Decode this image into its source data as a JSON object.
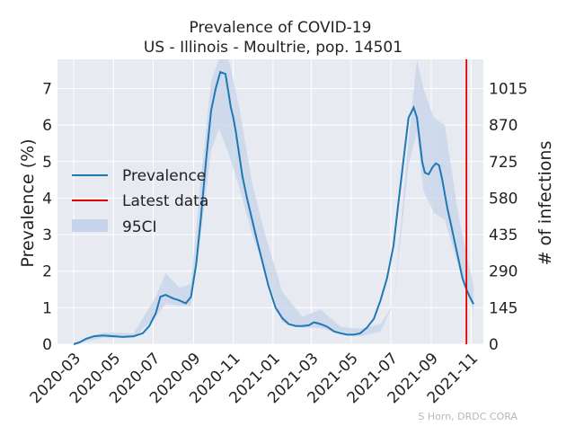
{
  "chart_data": {
    "type": "line",
    "title": "Prevalence of COVID-19",
    "subtitle": "US - Illinois - Moultrie, pop. 14501",
    "ylabel": "Prevalence (%)",
    "y2label": "# of infections",
    "ylim": [
      0,
      7.8
    ],
    "y_ticks": [
      0,
      1,
      2,
      3,
      4,
      5,
      6,
      7
    ],
    "y2_ticks": [
      0,
      145,
      290,
      435,
      580,
      725,
      870,
      1015
    ],
    "y2_per_y": 145.01,
    "x_tick_labels": [
      "2020-03",
      "2020-05",
      "2020-07",
      "2020-09",
      "2020-11",
      "2021-01",
      "2021-03",
      "2021-05",
      "2021-07",
      "2021-09",
      "2021-11"
    ],
    "xlim": [
      "2020-02-05",
      "2021-11-20"
    ],
    "grid": true,
    "legend_position": "center-left",
    "legend": [
      "Prevalence",
      "Latest data",
      "95CI"
    ],
    "latest_data_date": "2021-10-25",
    "colors": {
      "prevalence": "#1f77b4",
      "latest": "#e00000",
      "ci": "#c5d4e8",
      "plot_bg": "#e8eaf2",
      "grid": "#ffffff"
    },
    "series": [
      {
        "name": "Prevalence",
        "x": [
          "2020-03-01",
          "2020-03-10",
          "2020-03-20",
          "2020-04-01",
          "2020-04-15",
          "2020-05-01",
          "2020-05-15",
          "2020-06-01",
          "2020-06-15",
          "2020-06-25",
          "2020-07-05",
          "2020-07-12",
          "2020-07-20",
          "2020-08-01",
          "2020-08-10",
          "2020-08-20",
          "2020-08-28",
          "2020-09-05",
          "2020-09-12",
          "2020-09-20",
          "2020-09-28",
          "2020-10-05",
          "2020-10-12",
          "2020-10-20",
          "2020-10-28",
          "2020-11-01",
          "2020-11-05",
          "2020-11-10",
          "2020-11-15",
          "2020-11-22",
          "2020-11-30",
          "2020-12-08",
          "2020-12-15",
          "2020-12-25",
          "2021-01-05",
          "2021-01-15",
          "2021-01-25",
          "2021-02-05",
          "2021-02-15",
          "2021-02-25",
          "2021-03-05",
          "2021-03-15",
          "2021-03-25",
          "2021-04-05",
          "2021-04-15",
          "2021-04-25",
          "2021-05-05",
          "2021-05-15",
          "2021-05-25",
          "2021-06-05",
          "2021-06-15",
          "2021-06-25",
          "2021-07-05",
          "2021-07-12",
          "2021-07-20",
          "2021-07-28",
          "2021-08-05",
          "2021-08-10",
          "2021-08-14",
          "2021-08-18",
          "2021-08-22",
          "2021-08-28",
          "2021-09-03",
          "2021-09-08",
          "2021-09-13",
          "2021-09-18",
          "2021-09-22",
          "2021-09-26",
          "2021-10-01",
          "2021-10-07",
          "2021-10-13",
          "2021-10-19",
          "2021-10-25",
          "2021-10-30",
          "2021-11-05"
        ],
        "values": [
          0.0,
          0.05,
          0.15,
          0.22,
          0.24,
          0.22,
          0.2,
          0.22,
          0.3,
          0.5,
          0.85,
          1.3,
          1.35,
          1.25,
          1.2,
          1.12,
          1.3,
          2.2,
          3.4,
          5.0,
          6.4,
          7.0,
          7.45,
          7.4,
          6.5,
          6.2,
          5.8,
          5.2,
          4.6,
          4.0,
          3.4,
          2.8,
          2.3,
          1.6,
          1.0,
          0.72,
          0.55,
          0.5,
          0.5,
          0.52,
          0.6,
          0.55,
          0.48,
          0.35,
          0.3,
          0.26,
          0.26,
          0.3,
          0.45,
          0.7,
          1.2,
          1.8,
          2.7,
          3.8,
          5.0,
          6.2,
          6.48,
          6.2,
          5.6,
          5.0,
          4.7,
          4.65,
          4.85,
          4.95,
          4.9,
          4.5,
          4.1,
          3.7,
          3.3,
          2.8,
          2.3,
          1.8,
          1.5,
          1.3,
          1.1
        ]
      },
      {
        "name": "95CI",
        "x": [
          "2020-03-01",
          "2020-04-15",
          "2020-06-01",
          "2020-07-05",
          "2020-07-20",
          "2020-08-10",
          "2020-08-28",
          "2020-09-12",
          "2020-09-28",
          "2020-10-10",
          "2020-10-25",
          "2020-11-10",
          "2020-11-30",
          "2020-12-20",
          "2021-01-15",
          "2021-02-15",
          "2021-03-15",
          "2021-04-15",
          "2021-05-15",
          "2021-06-15",
          "2021-07-05",
          "2021-07-28",
          "2021-08-10",
          "2021-08-20",
          "2021-09-05",
          "2021-09-22",
          "2021-10-13",
          "2021-11-05"
        ],
        "lower": [
          0.0,
          0.18,
          0.18,
          0.75,
          1.1,
          1.05,
          1.05,
          3.0,
          5.3,
          5.9,
          5.2,
          4.3,
          3.0,
          2.0,
          0.6,
          0.45,
          0.45,
          0.27,
          0.22,
          0.35,
          1.1,
          4.9,
          5.8,
          4.2,
          3.6,
          3.4,
          2.1,
          0.9
        ],
        "upper": [
          0.05,
          0.32,
          0.3,
          1.3,
          1.95,
          1.55,
          1.65,
          4.5,
          7.2,
          8.2,
          7.9,
          6.5,
          4.4,
          3.0,
          1.45,
          0.75,
          0.95,
          0.48,
          0.42,
          0.55,
          1.1,
          5.6,
          7.8,
          7.0,
          6.2,
          6.0,
          3.5,
          1.6
        ]
      }
    ]
  },
  "credit": "S Horn, DRDC CORA"
}
